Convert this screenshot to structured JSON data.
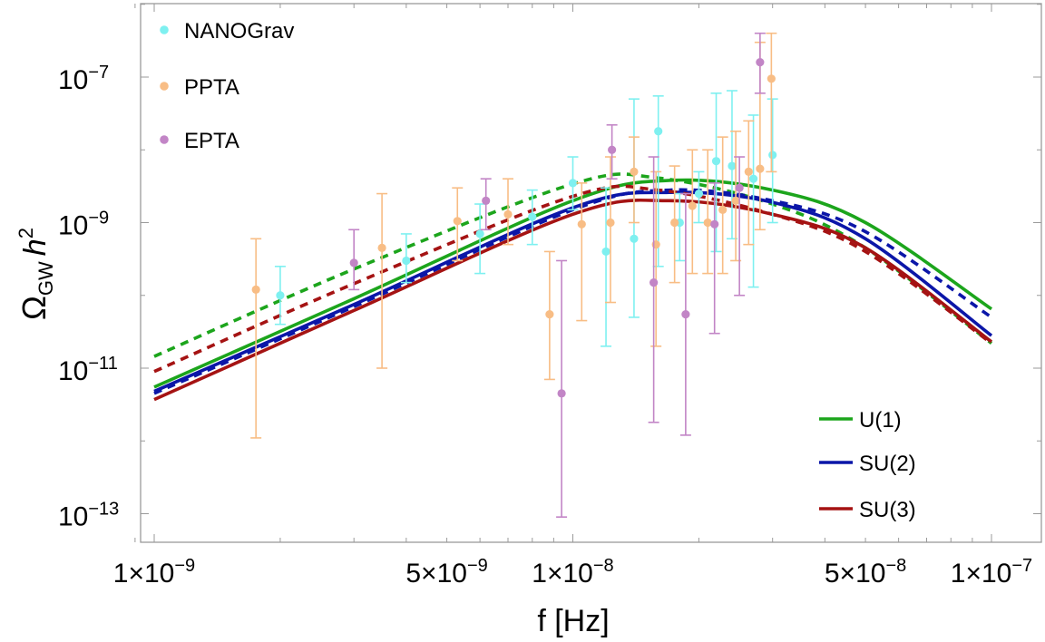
{
  "chart_data": {
    "type": "scatter",
    "title": "",
    "xlabel": "f [Hz]",
    "ylabel": "Ω_GW h²",
    "ylabel_parts": {
      "main": "Ω",
      "sub": "GW",
      "h": "h",
      "sup": "2"
    },
    "xscale": "log",
    "yscale": "log",
    "xlim": [
      8.2e-10,
      1.15e-07
    ],
    "ylim": [
      3e-14,
      1.2e-06
    ],
    "x_ticks": [
      {
        "value": 1e-09,
        "mant": "1×10",
        "exp": "−9"
      },
      {
        "value": 5e-09,
        "mant": "5×10",
        "exp": "−9"
      },
      {
        "value": 1e-08,
        "mant": "1×10",
        "exp": "−8"
      },
      {
        "value": 5e-08,
        "mant": "5×10",
        "exp": "−8"
      },
      {
        "value": 1e-07,
        "mant": "1×10",
        "exp": "−7"
      }
    ],
    "y_ticks": [
      {
        "value": 1e-13,
        "mant": "10",
        "exp": "−13"
      },
      {
        "value": 1e-11,
        "mant": "10",
        "exp": "−11"
      },
      {
        "value": 1e-09,
        "mant": "10",
        "exp": "−9"
      },
      {
        "value": 1e-07,
        "mant": "10",
        "exp": "−7"
      }
    ],
    "scatter_legend": [
      {
        "name": "NANOGrav",
        "color": "#7ef0f0"
      },
      {
        "name": "PPTA",
        "color": "#f8bd85"
      },
      {
        "name": "EPTA",
        "color": "#c285c6"
      }
    ],
    "line_legend": [
      {
        "name": "U(1)",
        "color": "#1ca51c"
      },
      {
        "name": "SU(2)",
        "color": "#0b16a8"
      },
      {
        "name": "SU(3)",
        "color": "#a51313"
      }
    ],
    "datasets": [
      {
        "name": "NANOGrav",
        "color": "#7ef0f0",
        "points": [
          {
            "x": 2e-09,
            "y": 1e-10,
            "lo": 4e-11,
            "hi": 2.5e-10
          },
          {
            "x": 4e-09,
            "y": 3e-10,
            "lo": 1.5e-10,
            "hi": 7e-10
          },
          {
            "x": 6e-09,
            "y": 7e-10,
            "lo": 2e-10,
            "hi": 1.8e-09
          },
          {
            "x": 8e-09,
            "y": 1.2e-09,
            "lo": 5e-10,
            "hi": 2.8e-09
          },
          {
            "x": 1e-08,
            "y": 3.5e-09,
            "lo": 1.5e-09,
            "hi": 8e-09
          },
          {
            "x": 1.2e-08,
            "y": 4e-10,
            "lo": 2e-11,
            "hi": 3e-09
          },
          {
            "x": 1.4e-08,
            "y": 6e-10,
            "lo": 5e-11,
            "hi": 5e-08
          },
          {
            "x": 1.6e-08,
            "y": 1.8e-08,
            "lo": 2.5e-10,
            "hi": 5.5e-08
          },
          {
            "x": 1.8e-08,
            "y": 1e-09,
            "lo": 3e-10,
            "hi": 2.5e-09
          },
          {
            "x": 2e-08,
            "y": 2.5e-09,
            "lo": 1e-09,
            "hi": 5e-09
          },
          {
            "x": 2.2e-08,
            "y": 7e-09,
            "lo": 4e-10,
            "hi": 6e-08
          },
          {
            "x": 2.4e-08,
            "y": 6e-09,
            "lo": 6e-10,
            "hi": 6.5e-08
          },
          {
            "x": 2.7e-08,
            "y": 4e-09,
            "lo": 1.3e-10,
            "hi": 3e-08
          },
          {
            "x": 3e-08,
            "y": 8.5e-09,
            "lo": 1e-09,
            "hi": 5e-08
          }
        ]
      },
      {
        "name": "PPTA",
        "color": "#f8bd85",
        "points": [
          {
            "x": 1.75e-09,
            "y": 1.2e-10,
            "lo": 1.1e-12,
            "hi": 6e-10
          },
          {
            "x": 3.5e-09,
            "y": 4.5e-10,
            "lo": 1e-11,
            "hi": 2.5e-09
          },
          {
            "x": 5.3e-09,
            "y": 1.05e-09,
            "lo": 3e-10,
            "hi": 3e-09
          },
          {
            "x": 7e-09,
            "y": 1.3e-09,
            "lo": 5e-10,
            "hi": 4e-09
          },
          {
            "x": 8.8e-09,
            "y": 5.5e-11,
            "lo": 7e-12,
            "hi": 4e-10
          },
          {
            "x": 1.05e-08,
            "y": 9.5e-10,
            "lo": 4.5e-11,
            "hi": 3.5e-09
          },
          {
            "x": 1.23e-08,
            "y": 1e-09,
            "lo": 8e-11,
            "hi": 8e-09
          },
          {
            "x": 1.4e-08,
            "y": 5e-09,
            "lo": 1e-09,
            "hi": 1.5e-08
          },
          {
            "x": 1.58e-08,
            "y": 5e-10,
            "lo": 2e-11,
            "hi": 5e-09
          },
          {
            "x": 1.75e-08,
            "y": 1e-09,
            "lo": 1.5e-10,
            "hi": 6e-09
          },
          {
            "x": 1.93e-08,
            "y": 1.7e-09,
            "lo": 2e-10,
            "hi": 1e-08
          },
          {
            "x": 2.1e-08,
            "y": 1e-09,
            "lo": 2e-10,
            "hi": 1e-08
          },
          {
            "x": 2.28e-08,
            "y": 1.5e-09,
            "lo": 2e-10,
            "hi": 1.5e-08
          },
          {
            "x": 2.45e-08,
            "y": 2e-09,
            "lo": 3e-10,
            "hi": 1.8e-08
          },
          {
            "x": 2.63e-08,
            "y": 5e-09,
            "lo": 5e-10,
            "hi": 2.5e-08
          },
          {
            "x": 2.8e-08,
            "y": 5.5e-09,
            "lo": 8e-10,
            "hi": 3e-07
          },
          {
            "x": 2.98e-08,
            "y": 9.5e-08,
            "lo": 5e-09,
            "hi": 4e-07
          }
        ]
      },
      {
        "name": "EPTA",
        "color": "#c285c6",
        "points": [
          {
            "x": 3e-09,
            "y": 2.8e-10,
            "lo": 1.2e-10,
            "hi": 8e-10
          },
          {
            "x": 6.2e-09,
            "y": 2e-09,
            "lo": 8e-10,
            "hi": 4e-09
          },
          {
            "x": 9.4e-09,
            "y": 4.5e-12,
            "lo": 9e-14,
            "hi": 3e-10
          },
          {
            "x": 1.24e-08,
            "y": 1e-08,
            "lo": 4e-09,
            "hi": 2.2e-08
          },
          {
            "x": 1.56e-08,
            "y": 1.5e-10,
            "lo": 1.8e-12,
            "hi": 8e-09
          },
          {
            "x": 1.86e-08,
            "y": 5.5e-11,
            "lo": 1.2e-12,
            "hi": 2.5e-09
          },
          {
            "x": 2.18e-08,
            "y": 9.5e-10,
            "lo": 3e-11,
            "hi": 3.5e-09
          },
          {
            "x": 2.5e-08,
            "y": 3e-09,
            "lo": 1e-10,
            "hi": 8e-09
          },
          {
            "x": 2.8e-08,
            "y": 1.6e-07,
            "lo": 6e-08,
            "hi": 4e-07
          }
        ]
      }
    ],
    "curves": [
      {
        "name": "U(1)",
        "style": "solid",
        "color": "#1ca51c",
        "x": [
          1e-09,
          3e-09,
          1e-08,
          1.7e-08,
          3e-08,
          5e-08,
          1e-07
        ],
        "y": [
          5.5e-12,
          9e-11,
          2e-09,
          3.8e-09,
          2.8e-09,
          1e-09,
          6.5e-11
        ]
      },
      {
        "name": "U(1)",
        "style": "dashed",
        "color": "#1ca51c",
        "x": [
          1e-09,
          3e-09,
          1e-08,
          1.6e-08,
          3e-08,
          5e-08,
          1e-07
        ],
        "y": [
          1.45e-11,
          2.3e-10,
          3.4e-09,
          4.1e-09,
          1.8e-09,
          4.5e-10,
          2.2e-11
        ]
      },
      {
        "name": "SU(2)",
        "style": "solid",
        "color": "#0b16a8",
        "x": [
          1e-09,
          3e-09,
          1e-08,
          1.7e-08,
          3e-08,
          5e-08,
          1e-07
        ],
        "y": [
          4.8e-12,
          7.5e-11,
          1.6e-09,
          2.6e-09,
          1.9e-09,
          6e-10,
          2.8e-11
        ]
      },
      {
        "name": "SU(2)",
        "style": "dashed",
        "color": "#0b16a8",
        "x": [
          1e-09,
          3e-09,
          1e-08,
          1.7e-08,
          3e-08,
          5e-08,
          1e-07
        ],
        "y": [
          4.5e-12,
          7e-11,
          1.5e-09,
          2.8e-09,
          2e-09,
          7.5e-10,
          5e-11
        ]
      },
      {
        "name": "SU(3)",
        "style": "solid",
        "color": "#a51313",
        "x": [
          1e-09,
          3e-09,
          1e-08,
          1.7e-08,
          3e-08,
          5e-08,
          1e-07
        ],
        "y": [
          3.7e-12,
          6.2e-11,
          1.3e-09,
          2e-09,
          1.3e-09,
          4.5e-10,
          2.3e-11
        ]
      },
      {
        "name": "SU(3)",
        "style": "dashed",
        "color": "#a51313",
        "x": [
          1e-09,
          3e-09,
          1e-08,
          1.6e-08,
          3e-08,
          5e-08,
          1e-07
        ],
        "y": [
          9e-12,
          1.45e-10,
          2.3e-09,
          2.8e-09,
          1.3e-09,
          4e-10,
          2.2e-11
        ]
      }
    ]
  }
}
